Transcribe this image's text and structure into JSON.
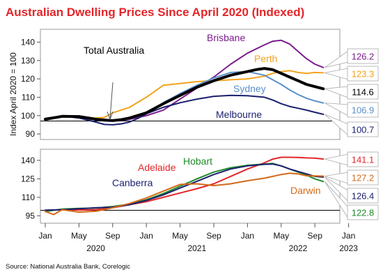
{
  "chart": {
    "title": "Australian Dwelling Prices Since April 2020 (Indexed)",
    "source": "Source: National Australia Bank, Corelogic",
    "x_ticks": [
      "Jan",
      "May",
      "Sep",
      "Jan",
      "May",
      "Sep",
      "Jan",
      "May",
      "Sep",
      "Jan"
    ],
    "x_years": [
      "2020",
      "2021",
      "2022",
      "2023"
    ],
    "top_ylabel": "Index April 2020 = 100",
    "top_yticks": [
      "90",
      "100",
      "110",
      "120",
      "130",
      "140"
    ],
    "bottom_yticks": [
      "95",
      "110",
      "125",
      "140"
    ],
    "annotation": "Total Australia"
  },
  "chart_data": [
    {
      "type": "line",
      "x_axis": "month",
      "ylim": [
        87,
        147
      ],
      "ylabel": "Index April 2020 = 100",
      "series": [
        {
          "name": "Brisbane",
          "color": "#7b1c8c",
          "end_label": "126.2",
          "points": [
            [
              0,
              97.5
            ],
            [
              2,
              99.5
            ],
            [
              4,
              99.8
            ],
            [
              6,
              98.5
            ],
            [
              8,
              97.5
            ],
            [
              9,
              97.3
            ],
            [
              10,
              98
            ],
            [
              12,
              100
            ],
            [
              14,
              103
            ],
            [
              16,
              109
            ],
            [
              18,
              115
            ],
            [
              20,
              121
            ],
            [
              22,
              128
            ],
            [
              24,
              134
            ],
            [
              26,
              138.5
            ],
            [
              27,
              140.5
            ],
            [
              28,
              141
            ],
            [
              29,
              139
            ],
            [
              30,
              135
            ],
            [
              31,
              131
            ],
            [
              32,
              128
            ],
            [
              33,
              126.2
            ]
          ]
        },
        {
          "name": "Perth",
          "color": "#f2a31b",
          "end_label": "123.3",
          "points": [
            [
              0,
              98
            ],
            [
              2,
              99.7
            ],
            [
              4,
              99.3
            ],
            [
              6,
              98.7
            ],
            [
              7,
              99
            ],
            [
              8,
              101.5
            ],
            [
              10,
              104.5
            ],
            [
              12,
              110
            ],
            [
              14,
              116.5
            ],
            [
              16,
              117.5
            ],
            [
              18,
              118.5
            ],
            [
              20,
              119
            ],
            [
              22,
              119.5
            ],
            [
              24,
              120
            ],
            [
              26,
              121.5
            ],
            [
              27,
              123
            ],
            [
              28,
              124
            ],
            [
              29,
              124.5
            ],
            [
              30,
              123.5
            ],
            [
              31,
              123
            ],
            [
              32,
              123.5
            ],
            [
              33,
              123.3
            ]
          ]
        },
        {
          "name": "Sydney",
          "color": "#5b8fc7",
          "end_label": "106.9",
          "points": [
            [
              0,
              98
            ],
            [
              2,
              100
            ],
            [
              4,
              99.2
            ],
            [
              6,
              98
            ],
            [
              8,
              97.5
            ],
            [
              10,
              98.5
            ],
            [
              12,
              101
            ],
            [
              14,
              107
            ],
            [
              16,
              112
            ],
            [
              18,
              116.5
            ],
            [
              20,
              120.5
            ],
            [
              22,
              123.5
            ],
            [
              24,
              124
            ],
            [
              26,
              122
            ],
            [
              27,
              119.5
            ],
            [
              28,
              117
            ],
            [
              29,
              114
            ],
            [
              30,
              111.5
            ],
            [
              31,
              109.5
            ],
            [
              32,
              108
            ],
            [
              33,
              106.9
            ]
          ]
        },
        {
          "name": "Melbourne",
          "color": "#1b1f6e",
          "end_label": "100.7",
          "points": [
            [
              0,
              98.5
            ],
            [
              2,
              99.8
            ],
            [
              4,
              98.7
            ],
            [
              6,
              96.5
            ],
            [
              7,
              95.2
            ],
            [
              8,
              95
            ],
            [
              9,
              95.5
            ],
            [
              10,
              96.5
            ],
            [
              11,
              98.5
            ],
            [
              12,
              101
            ],
            [
              14,
              104.5
            ],
            [
              16,
              107
            ],
            [
              18,
              109
            ],
            [
              20,
              110.5
            ],
            [
              22,
              111
            ],
            [
              24,
              110.8
            ],
            [
              26,
              110
            ],
            [
              27,
              108.5
            ],
            [
              28,
              106.5
            ],
            [
              29,
              105
            ],
            [
              30,
              104
            ],
            [
              31,
              103
            ],
            [
              32,
              101.8
            ],
            [
              33,
              100.7
            ]
          ]
        },
        {
          "name": "Total Australia",
          "color": "#000000",
          "end_label": "114.6",
          "points": [
            [
              0,
              98
            ],
            [
              2,
              99.6
            ],
            [
              4,
              99.5
            ],
            [
              6,
              98
            ],
            [
              7,
              97.5
            ],
            [
              8,
              97.3
            ],
            [
              9,
              97.8
            ],
            [
              10,
              98.7
            ],
            [
              12,
              101.5
            ],
            [
              14,
              106.5
            ],
            [
              16,
              111
            ],
            [
              18,
              115.5
            ],
            [
              20,
              119
            ],
            [
              22,
              122
            ],
            [
              24,
              124
            ],
            [
              25,
              125
            ],
            [
              26,
              125.7
            ],
            [
              27,
              125
            ],
            [
              28,
              123
            ],
            [
              29,
              121
            ],
            [
              30,
              119
            ],
            [
              31,
              117
            ],
            [
              32,
              115.8
            ],
            [
              33,
              114.6
            ]
          ]
        }
      ]
    },
    {
      "type": "line",
      "x_axis": "month",
      "ylim": [
        89,
        149
      ],
      "series": [
        {
          "name": "Adelaide",
          "color": "#e3262a",
          "end_label": "141.1",
          "points": [
            [
              0,
              99.5
            ],
            [
              2,
              100
            ],
            [
              4,
              99.7
            ],
            [
              6,
              100
            ],
            [
              8,
              101.5
            ],
            [
              10,
              104
            ],
            [
              12,
              106.5
            ],
            [
              14,
              110
            ],
            [
              16,
              113.5
            ],
            [
              18,
              117
            ],
            [
              20,
              121
            ],
            [
              22,
              127
            ],
            [
              24,
              133
            ],
            [
              26,
              138
            ],
            [
              27,
              141
            ],
            [
              28,
              142.5
            ],
            [
              29,
              142.5
            ],
            [
              30,
              142.3
            ],
            [
              31,
              142
            ],
            [
              32,
              141.8
            ],
            [
              33,
              141.1
            ]
          ]
        },
        {
          "name": "Hobart",
          "color": "#1f8a2a",
          "end_label": "122.8",
          "points": [
            [
              0,
              98.5
            ],
            [
              2,
              100.5
            ],
            [
              4,
              101
            ],
            [
              6,
              101.3
            ],
            [
              8,
              102.5
            ],
            [
              10,
              104.5
            ],
            [
              12,
              108
            ],
            [
              14,
              113
            ],
            [
              16,
              119
            ],
            [
              18,
              125
            ],
            [
              20,
              130.5
            ],
            [
              22,
              134
            ],
            [
              24,
              136
            ],
            [
              26,
              137
            ],
            [
              27,
              137.5
            ],
            [
              28,
              135.5
            ],
            [
              29,
              133
            ],
            [
              30,
              130.5
            ],
            [
              31,
              128
            ],
            [
              32,
              125
            ],
            [
              33,
              122.8
            ]
          ]
        },
        {
          "name": "Canberra",
          "color": "#1b1f6e",
          "end_label": "126.4",
          "points": [
            [
              0,
              99.5
            ],
            [
              2,
              100
            ],
            [
              4,
              100.7
            ],
            [
              6,
              101.5
            ],
            [
              8,
              102
            ],
            [
              10,
              104
            ],
            [
              12,
              107.5
            ],
            [
              14,
              112
            ],
            [
              16,
              117.5
            ],
            [
              18,
              123
            ],
            [
              20,
              128.5
            ],
            [
              22,
              133
            ],
            [
              24,
              135.5
            ],
            [
              26,
              136.8
            ],
            [
              27,
              137
            ],
            [
              28,
              135.5
            ],
            [
              29,
              133
            ],
            [
              30,
              131
            ],
            [
              31,
              129
            ],
            [
              32,
              127
            ],
            [
              33,
              126.4
            ]
          ]
        },
        {
          "name": "Darwin",
          "color": "#d4691a",
          "end_label": "127.2",
          "points": [
            [
              0,
              98.5
            ],
            [
              1,
              96
            ],
            [
              2,
              100
            ],
            [
              4,
              98
            ],
            [
              6,
              98.7
            ],
            [
              8,
              101.5
            ],
            [
              10,
              105
            ],
            [
              12,
              109.5
            ],
            [
              14,
              115
            ],
            [
              16,
              120.5
            ],
            [
              18,
              121
            ],
            [
              20,
              119.5
            ],
            [
              22,
              121
            ],
            [
              24,
              123.5
            ],
            [
              26,
              125.5
            ],
            [
              27,
              127
            ],
            [
              28,
              128.5
            ],
            [
              29,
              129.5
            ],
            [
              30,
              129
            ],
            [
              31,
              127.5
            ],
            [
              32,
              127.3
            ],
            [
              33,
              127.2
            ]
          ]
        }
      ]
    }
  ]
}
